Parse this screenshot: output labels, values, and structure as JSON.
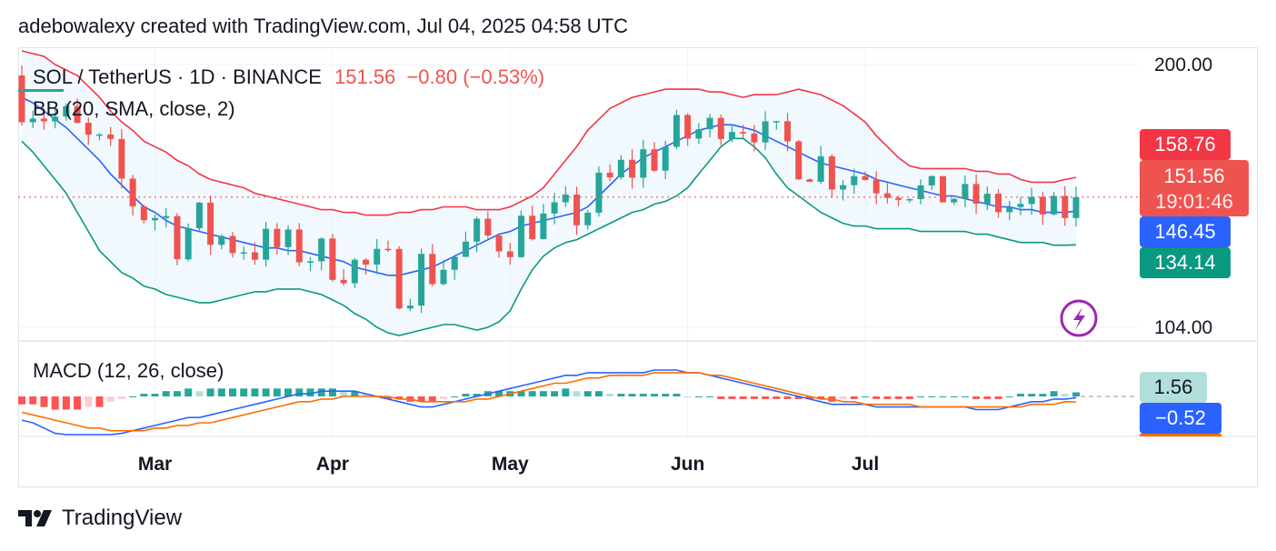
{
  "header": {
    "attribution": "adebowalexy created with TradingView.com, Jul 04, 2025 04:58 UTC"
  },
  "legend": {
    "symbol": "SOL / TetherUS · 1D · BINANCE",
    "last": "151.56",
    "change": "−0.80 (−0.53%)",
    "bb": "BB (20, SMA, close, 2)",
    "macd": "MACD (12, 26, close)"
  },
  "badges": {
    "upper": "158.76",
    "price": "151.56",
    "countdown": "19:01:46",
    "basis": "146.45",
    "lower": "134.14",
    "histogram": "1.56",
    "macd": "−0.52"
  },
  "colors": {
    "up": "#26a69a",
    "down": "#ef5350",
    "bb_upper": "#f23645",
    "bb_basis": "#2962ff",
    "bb_lower": "#089981",
    "macd_line": "#2962ff",
    "signal_line": "#ff6d00"
  },
  "footer": {
    "brand": "TradingView",
    "logo_icon": "tradingview-logo-icon"
  },
  "chart_data": [
    {
      "type": "candlestick",
      "y_ticks": [
        "200.00",
        "104.00"
      ],
      "ylim": [
        100,
        210
      ],
      "x_ticks": [
        "Mar",
        "Apr",
        "May",
        "Jun",
        "Jul"
      ],
      "last_price": 151.56,
      "series": [
        {
          "name": "BB upper",
          "values": [
            205,
            204,
            203,
            200,
            198,
            196,
            192,
            188,
            183,
            179,
            176,
            172,
            170,
            168,
            165,
            163,
            160,
            158,
            157,
            156,
            155,
            153,
            152,
            151,
            150,
            149,
            148,
            147,
            147,
            146,
            146,
            145,
            145,
            145,
            146,
            146,
            147,
            147,
            148,
            148,
            148,
            147,
            147,
            147,
            148,
            150,
            152,
            155,
            160,
            165,
            170,
            176,
            180,
            184,
            186,
            188,
            189,
            190,
            191,
            191,
            191,
            191,
            190,
            190,
            189,
            188,
            189,
            189,
            189,
            190,
            191,
            190,
            189,
            187,
            185,
            182,
            179,
            174,
            170,
            166,
            163,
            162,
            162,
            162,
            162,
            162,
            161,
            161,
            160,
            160,
            158,
            157,
            157,
            157,
            158,
            158.76
          ]
        },
        {
          "name": "BB basis",
          "values": [
            188,
            186,
            183,
            180,
            177,
            173,
            169,
            165,
            160,
            156,
            152,
            148,
            146,
            143,
            141,
            140,
            139,
            138,
            137,
            136,
            135,
            134,
            133,
            133,
            132,
            132,
            131,
            130,
            129,
            128,
            126,
            125,
            124,
            123,
            123,
            124,
            125,
            126,
            128,
            130,
            132,
            134,
            136,
            138,
            139,
            141,
            142,
            143,
            144,
            145,
            146,
            148,
            152,
            156,
            160,
            163,
            166,
            168,
            170,
            172,
            174,
            176,
            177,
            178,
            178,
            177,
            176,
            174,
            172,
            170,
            168,
            166,
            164,
            163,
            162,
            161,
            160,
            158,
            157,
            156,
            155,
            154,
            153,
            152,
            152,
            151,
            150,
            149,
            148,
            148,
            147,
            147,
            146,
            146,
            146,
            146.45
          ]
        },
        {
          "name": "BB lower",
          "values": [
            172,
            168,
            163,
            158,
            153,
            146,
            139,
            132,
            128,
            124,
            122,
            119,
            118,
            116,
            115,
            114,
            113,
            113,
            114,
            115,
            116,
            117,
            117,
            118,
            118,
            118,
            117,
            116,
            114,
            112,
            109,
            107,
            104,
            102,
            101,
            102,
            103,
            104,
            105,
            105,
            104,
            103,
            104,
            106,
            110,
            118,
            125,
            130,
            133,
            135,
            136,
            138,
            140,
            142,
            144,
            146,
            147,
            149,
            150,
            152,
            155,
            160,
            165,
            170,
            173,
            173,
            170,
            166,
            160,
            155,
            152,
            149,
            146,
            144,
            142,
            141,
            141,
            140,
            140,
            140,
            140,
            139,
            139,
            139,
            139,
            139,
            138,
            138,
            137,
            136,
            135,
            135,
            135,
            134,
            134,
            134.14
          ]
        }
      ]
    },
    {
      "type": "macd",
      "series": [
        {
          "name": "MACD line",
          "values": [
            -9,
            -10,
            -12,
            -14,
            -15,
            -16,
            -16,
            -16,
            -15,
            -14,
            -13,
            -12,
            -11,
            -10,
            -9,
            -8,
            -8,
            -7,
            -6,
            -5,
            -4,
            -3,
            -2,
            -1,
            0,
            1,
            1,
            2,
            2,
            2,
            2,
            1,
            0,
            -1,
            -2,
            -3,
            -4,
            -4,
            -3,
            -2,
            -1,
            0,
            1,
            2,
            3,
            4,
            5,
            6,
            7,
            8,
            8,
            9,
            9,
            9,
            9,
            9,
            9,
            10,
            10,
            10,
            9,
            9,
            8,
            7,
            6,
            5,
            4,
            3,
            2,
            1,
            0,
            -1,
            -2,
            -3,
            -3,
            -3,
            -3,
            -4,
            -4,
            -4,
            -4,
            -4,
            -4,
            -4,
            -4,
            -4,
            -5,
            -5,
            -5,
            -4,
            -3,
            -2,
            -2,
            -1,
            -1,
            -0.52
          ]
        },
        {
          "name": "Signal line",
          "values": [
            -6,
            -7,
            -8,
            -9,
            -10,
            -11,
            -12,
            -12,
            -13,
            -13,
            -13,
            -13,
            -12,
            -12,
            -11,
            -11,
            -10,
            -10,
            -9,
            -8,
            -7,
            -6,
            -5,
            -4,
            -3,
            -2,
            -2,
            -1,
            -1,
            0,
            0,
            0,
            0,
            0,
            -1,
            -1,
            -2,
            -2,
            -2,
            -2,
            -2,
            -1,
            -1,
            0,
            1,
            2,
            3,
            4,
            5,
            5,
            6,
            7,
            7,
            8,
            8,
            8,
            8,
            9,
            9,
            9,
            9,
            9,
            8,
            8,
            7,
            6,
            5,
            4,
            3,
            2,
            1,
            0,
            -1,
            -1,
            -2,
            -2,
            -3,
            -3,
            -3,
            -3,
            -3,
            -4,
            -4,
            -4,
            -4,
            -4,
            -4,
            -4,
            -4,
            -4,
            -4,
            -3,
            -3,
            -3,
            -2,
            -2.08
          ]
        }
      ],
      "histogram_last": 1.56
    }
  ]
}
